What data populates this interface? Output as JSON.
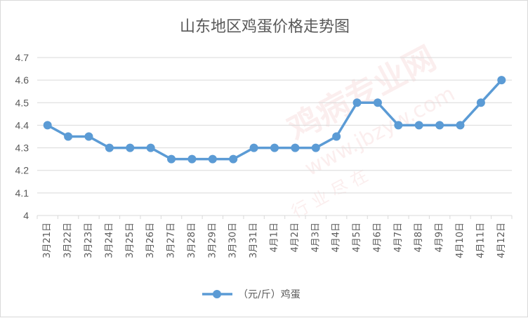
{
  "chart_data": {
    "type": "line",
    "title": "山东地区鸡蛋价格走势图",
    "xlabel": "",
    "ylabel": "",
    "categories": [
      "3月21日",
      "3月22日",
      "3月23日",
      "3月24日",
      "3月25日",
      "3月26日",
      "3月27日",
      "3月28日",
      "3月29日",
      "3月30日",
      "3月31日",
      "4月1日",
      "4月2日",
      "4月3日",
      "4月4日",
      "4月5日",
      "4月6日",
      "4月7日",
      "4月8日",
      "4月9日",
      "4月10日",
      "4月11日",
      "4月12日"
    ],
    "series": [
      {
        "name": "（元/斤）鸡蛋",
        "values": [
          4.4,
          4.35,
          4.35,
          4.3,
          4.3,
          4.3,
          4.25,
          4.25,
          4.25,
          4.25,
          4.3,
          4.3,
          4.3,
          4.3,
          4.35,
          4.5,
          4.5,
          4.4,
          4.4,
          4.4,
          4.4,
          4.5,
          4.6
        ]
      }
    ],
    "ylim": [
      4,
      4.7
    ],
    "yticks": [
      4,
      4.1,
      4.2,
      4.3,
      4.4,
      4.5,
      4.6,
      4.7
    ],
    "grid": true,
    "legend": "bottom",
    "colors": {
      "series": "#5b9bd5",
      "grid": "#d9d9d9",
      "text": "#595959"
    }
  },
  "watermark": {
    "main": "鸡病专业网",
    "url": "www.jbzyw.com",
    "sub": "行 业 尽 在"
  }
}
